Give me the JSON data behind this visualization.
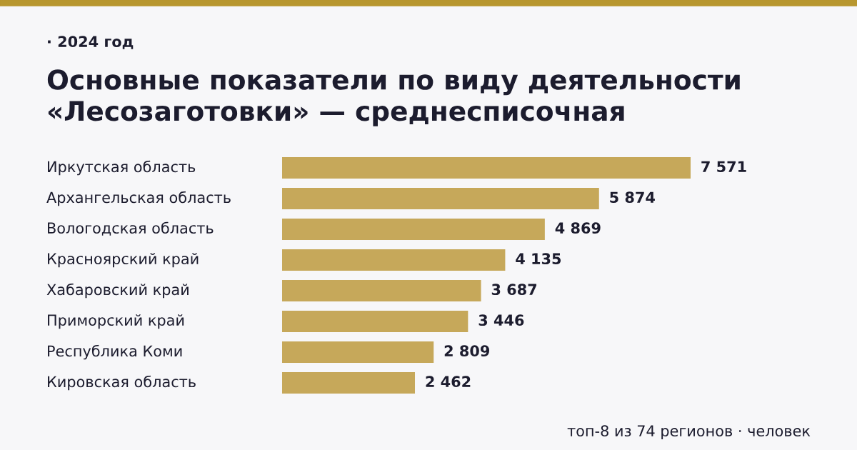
{
  "chart_data": {
    "type": "bar",
    "orientation": "horizontal",
    "title": "Основные показатели по виду деятельности «Лесозаготовки» — среднесписочная",
    "subtitle": "· 2024 год",
    "categories": [
      "Иркутская область",
      "Архангельская область",
      "Вологодская область",
      "Красноярский край",
      "Хабаровский край",
      "Приморский край",
      "Республика Коми",
      "Кировская область"
    ],
    "values": [
      7571,
      5874,
      4869,
      4135,
      3687,
      3446,
      2809,
      2462
    ],
    "value_labels": [
      "7 571",
      "5 874",
      "4 869",
      "4 135",
      "3 687",
      "3 446",
      "2 809",
      "2 462"
    ],
    "color": "#c6a85a",
    "annotations": [
      "топ-8 из 74 регионов · человек"
    ]
  }
}
